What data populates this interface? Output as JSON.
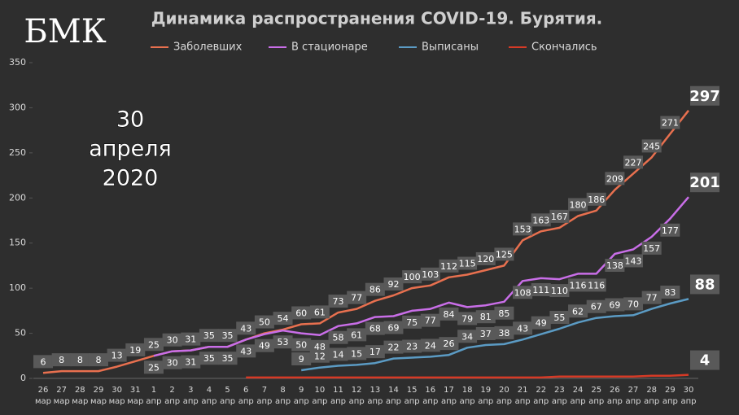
{
  "logo": "БМК",
  "chart_data": {
    "type": "line",
    "title": "Динамика распространения COVID-19. Бурятия.",
    "annotation": [
      "30",
      "апреля",
      "2020"
    ],
    "categories": [
      [
        "26",
        "мар"
      ],
      [
        "27",
        "мар"
      ],
      [
        "28",
        "мар"
      ],
      [
        "29",
        "мар"
      ],
      [
        "30",
        "мар"
      ],
      [
        "31",
        "мар"
      ],
      [
        "1",
        "апр"
      ],
      [
        "2",
        "апр"
      ],
      [
        "3",
        "апр"
      ],
      [
        "4",
        "апр"
      ],
      [
        "5",
        "апр"
      ],
      [
        "6",
        "апр"
      ],
      [
        "7",
        "апр"
      ],
      [
        "8",
        "апр"
      ],
      [
        "9",
        "апр"
      ],
      [
        "10",
        "апр"
      ],
      [
        "11",
        "апр"
      ],
      [
        "12",
        "апр"
      ],
      [
        "13",
        "апр"
      ],
      [
        "14",
        "апр"
      ],
      [
        "15",
        "апр"
      ],
      [
        "16",
        "апр"
      ],
      [
        "17",
        "апр"
      ],
      [
        "18",
        "апр"
      ],
      [
        "19",
        "апр"
      ],
      [
        "20",
        "апр"
      ],
      [
        "21",
        "апр"
      ],
      [
        "22",
        "апр"
      ],
      [
        "23",
        "апр"
      ],
      [
        "24",
        "апр"
      ],
      [
        "25",
        "апр"
      ],
      [
        "26",
        "апр"
      ],
      [
        "27",
        "апр"
      ],
      [
        "28",
        "апр"
      ],
      [
        "29",
        "апр"
      ],
      [
        "30",
        "апр"
      ]
    ],
    "series": [
      {
        "name": "Заболевших",
        "color": "#e8704f",
        "data_labels": "all",
        "label_side": "above",
        "values": [
          6,
          8,
          8,
          8,
          13,
          19,
          25,
          30,
          31,
          35,
          35,
          43,
          50,
          54,
          60,
          61,
          73,
          77,
          86,
          92,
          100,
          103,
          112,
          115,
          120,
          125,
          153,
          163,
          167,
          180,
          186,
          209,
          227,
          245,
          271,
          297
        ]
      },
      {
        "name": "В стационаре",
        "color": "#c96ee8",
        "data_labels": "all",
        "label_side": "below",
        "values": [
          null,
          null,
          null,
          null,
          null,
          null,
          25,
          30,
          31,
          35,
          35,
          43,
          49,
          53,
          50,
          48,
          58,
          61,
          68,
          69,
          75,
          77,
          84,
          79,
          81,
          85,
          108,
          111,
          110,
          116,
          116,
          138,
          143,
          157,
          177,
          201
        ]
      },
      {
        "name": "Выписаны",
        "color": "#5b9bc4",
        "data_labels": "all",
        "label_side": "above",
        "values": [
          null,
          null,
          null,
          null,
          null,
          null,
          null,
          null,
          null,
          null,
          null,
          null,
          null,
          null,
          9,
          12,
          14,
          15,
          17,
          22,
          23,
          24,
          26,
          34,
          37,
          38,
          43,
          49,
          55,
          62,
          67,
          69,
          70,
          77,
          83,
          88
        ]
      },
      {
        "name": "Скончались",
        "color": "#d63a26",
        "data_labels": "last",
        "label_side": "above",
        "values": [
          null,
          null,
          null,
          null,
          null,
          null,
          null,
          null,
          null,
          null,
          null,
          1,
          1,
          1,
          1,
          1,
          1,
          1,
          1,
          1,
          1,
          1,
          1,
          1,
          1,
          1,
          1,
          1,
          2,
          2,
          2,
          2,
          2,
          3,
          3,
          4
        ]
      }
    ],
    "ylim": [
      0,
      350
    ],
    "yticks": [
      0,
      50,
      100,
      150,
      200,
      250,
      300,
      350
    ],
    "grid": false,
    "legend": "top"
  }
}
